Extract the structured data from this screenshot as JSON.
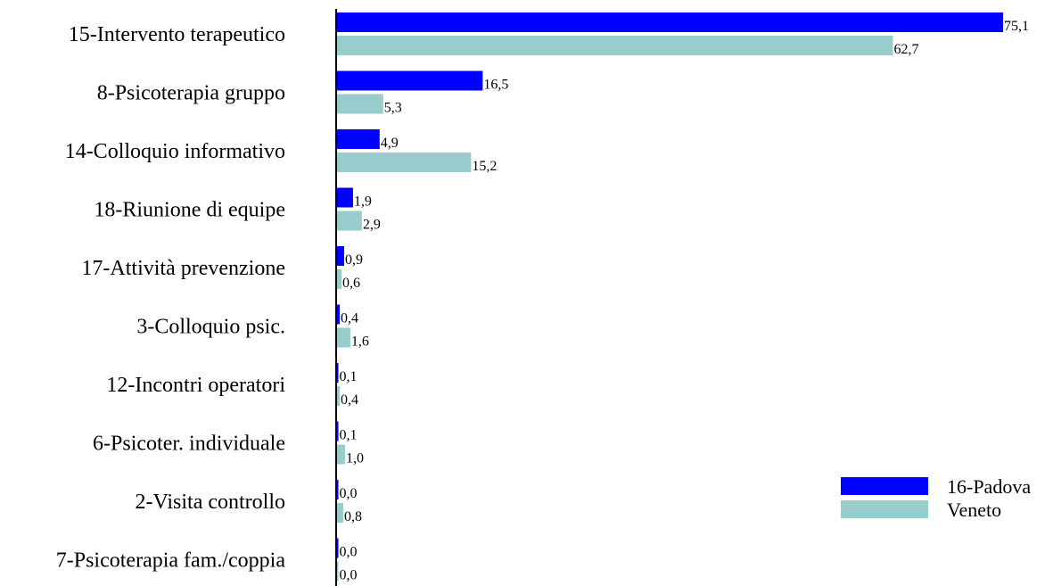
{
  "chart_data": {
    "type": "bar",
    "orientation": "horizontal",
    "categories": [
      "15-Intervento terapeutico",
      "8-Psicoterapia gruppo",
      "14-Colloquio informativo",
      "18-Riunione di equipe",
      "17-Attività prevenzione",
      "3-Colloquio psic.",
      "12-Incontri operatori",
      "6-Psicoter. individuale",
      "2-Visita controllo",
      "7-Psicoterapia fam./coppia"
    ],
    "series": [
      {
        "name": "16-Padova",
        "color": "#0000ff",
        "values": [
          75.1,
          16.5,
          4.9,
          1.9,
          0.9,
          0.4,
          0.1,
          0.1,
          0.0,
          0.0
        ],
        "labels": [
          "75,1",
          "16,5",
          "4,9",
          "1,9",
          "0,9",
          "0,4",
          "0,1",
          "0,1",
          "0,0",
          "0,0"
        ]
      },
      {
        "name": "Veneto",
        "color": "#99cccc",
        "values": [
          62.7,
          5.3,
          15.2,
          2.9,
          0.6,
          1.6,
          0.4,
          1.0,
          0.8,
          0.0
        ],
        "labels": [
          "62,7",
          "5,3",
          "15,2",
          "2,9",
          "0,6",
          "1,6",
          "0,4",
          "1,0",
          "0,8",
          "0,0"
        ]
      }
    ],
    "xlim": [
      0,
      75.1
    ],
    "grid": false,
    "legend": "right"
  }
}
